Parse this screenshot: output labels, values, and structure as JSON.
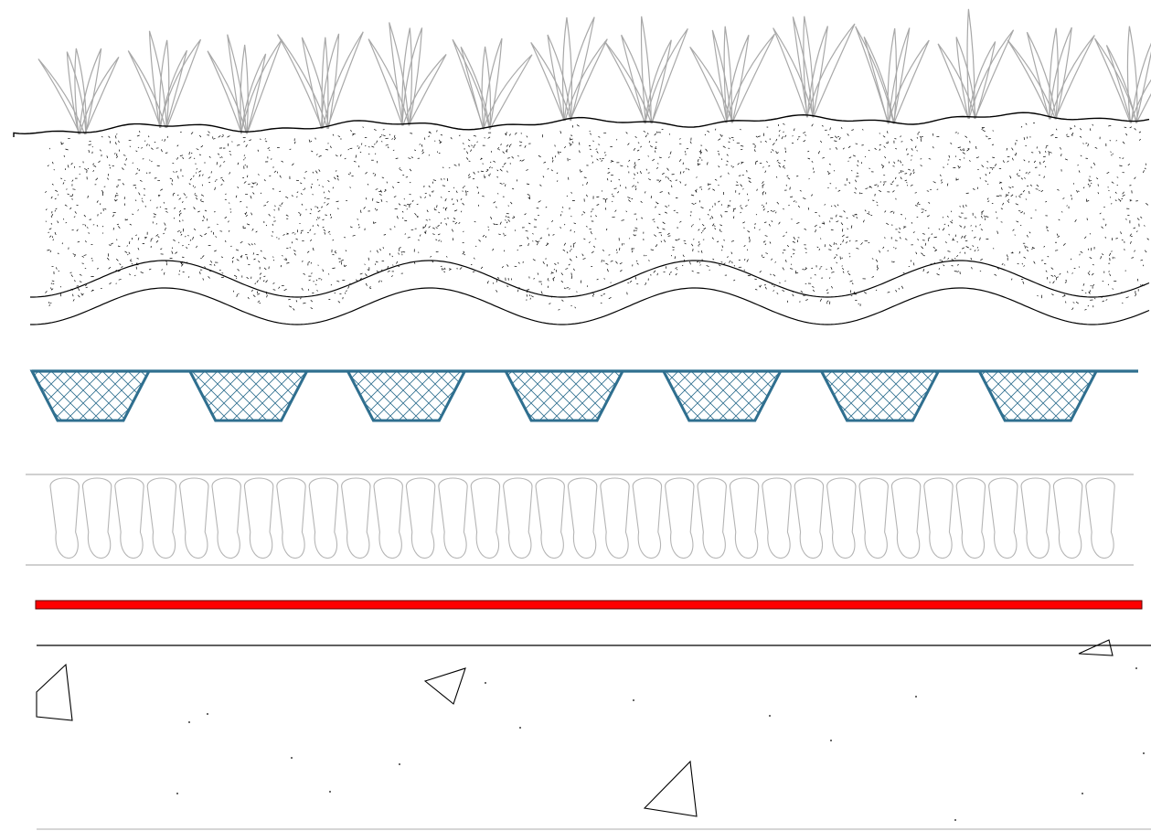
{
  "diagram": {
    "kind": "green-roof-section",
    "layers": [
      {
        "id": "vegetation",
        "icon": "grass-icon"
      },
      {
        "id": "growing-substrate",
        "icon": "soil-stipple-icon"
      },
      {
        "id": "filter-fleece",
        "icon": "wavy-membrane-icon"
      },
      {
        "id": "drainage-board",
        "icon": "egg-crate-icon"
      },
      {
        "id": "insulation",
        "icon": "batt-insulation-icon"
      },
      {
        "id": "waterproofing-membrane",
        "icon": "red-membrane-icon"
      },
      {
        "id": "concrete-deck",
        "icon": "concrete-aggregate-icon"
      }
    ],
    "colors": {
      "outline": "#000000",
      "vegetation": "#a8a8a8",
      "insulation": "#b4b4b4",
      "drainage": "#2f6f8f",
      "membrane": "#ff0000",
      "background": "#ffffff"
    },
    "counts": {
      "drainage_cups": 7,
      "insulation_loops": 33,
      "grass_tufts": 14
    }
  }
}
